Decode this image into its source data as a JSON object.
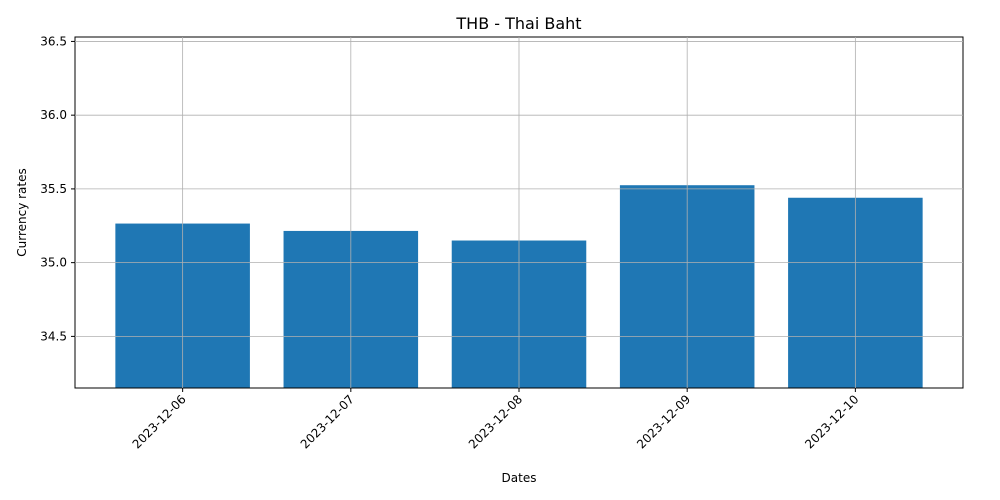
{
  "chart_data": {
    "type": "bar",
    "title": "THB - Thai Baht",
    "xlabel": "Dates",
    "ylabel": "Currency rates",
    "categories": [
      "2023-12-06",
      "2023-12-07",
      "2023-12-08",
      "2023-12-09",
      "2023-12-10"
    ],
    "values": [
      35.265,
      35.215,
      35.15,
      35.525,
      35.44
    ],
    "ylim": [
      34.15,
      36.53
    ],
    "yticks": [
      34.5,
      35.0,
      35.5,
      36.0,
      36.5
    ],
    "ytick_labels": [
      "34.5",
      "35.0",
      "35.5",
      "36.0",
      "36.5"
    ],
    "grid": true,
    "bar_color": "#1f77b4",
    "grid_color": "#b0b0b0",
    "xtick_rotation_deg": 45
  }
}
